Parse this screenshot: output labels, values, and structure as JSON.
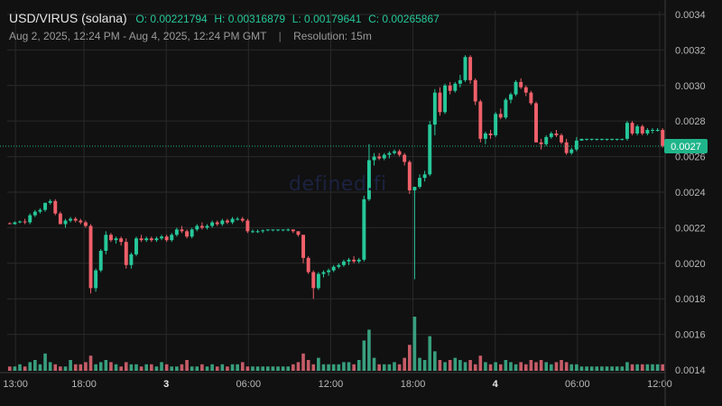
{
  "header": {
    "pair": "USD/VIRUS (solana)",
    "open": "O: 0.00221794",
    "high": "H: 0.00316879",
    "low": "L: 0.00179641",
    "close": "C: 0.00265867",
    "range": "Aug 2, 2025, 12:24 PM - Aug 4, 2025, 12:24 PM GMT",
    "separator": "|",
    "resolution": "Resolution: 15m"
  },
  "watermark": "defined.fi",
  "colors": {
    "background": "#111111",
    "grid": "#2a2a2a",
    "up": "#26c89a",
    "down": "#f0606a",
    "up_volume": "#3fb892",
    "down_volume": "#e66a78",
    "axis_text": "#b8b8b8",
    "price_badge": "#1fb58a"
  },
  "chart_data": {
    "type": "candlestick",
    "title": "USD/VIRUS (solana)",
    "xlabel": "",
    "ylabel": "",
    "ylim": [
      0.0014,
      0.00342
    ],
    "y_ticks": [
      "0.0034",
      "0.0032",
      "0.0030",
      "0.0028",
      "0.0026",
      "0.0024",
      "0.0022",
      "0.0020",
      "0.0018",
      "0.0016",
      "0.0014"
    ],
    "x_ticks": [
      {
        "label": "13:00",
        "t": 0.6
      },
      {
        "label": "18:00",
        "t": 5.6
      },
      {
        "label": "3",
        "t": 11.6,
        "bold": true
      },
      {
        "label": "06:00",
        "t": 17.6
      },
      {
        "label": "12:00",
        "t": 23.6
      },
      {
        "label": "18:00",
        "t": 29.6
      },
      {
        "label": "4",
        "t": 35.6,
        "bold": true
      },
      {
        "label": "06:00",
        "t": 41.6
      },
      {
        "label": "12:00",
        "t": 47.6
      }
    ],
    "x_range_hours": [
      0,
      48
    ],
    "grid": true,
    "current_price": "0.0027",
    "current_price_value": 0.002659,
    "ohlc": [
      [
        0.002225,
        0.00223,
        0.00222,
        0.00222
      ],
      [
        0.00222,
        0.002235,
        0.002218,
        0.00223
      ],
      [
        0.00223,
        0.00224,
        0.002225,
        0.002235
      ],
      [
        0.002235,
        0.00225,
        0.00222,
        0.00223
      ],
      [
        0.00223,
        0.00228,
        0.00222,
        0.00227
      ],
      [
        0.00227,
        0.0023,
        0.00226,
        0.00229
      ],
      [
        0.00229,
        0.00231,
        0.00228,
        0.0023
      ],
      [
        0.0023,
        0.00234,
        0.00229,
        0.00234
      ],
      [
        0.00234,
        0.00236,
        0.00233,
        0.00235
      ],
      [
        0.00235,
        0.00236,
        0.00227,
        0.00228
      ],
      [
        0.00228,
        0.00229,
        0.00222,
        0.00222
      ],
      [
        0.00222,
        0.00225,
        0.0022,
        0.00224
      ],
      [
        0.00224,
        0.00226,
        0.00223,
        0.00225
      ],
      [
        0.00225,
        0.00226,
        0.00223,
        0.00224
      ],
      [
        0.00224,
        0.00225,
        0.00222,
        0.00223
      ],
      [
        0.00223,
        0.00224,
        0.0022,
        0.00221
      ],
      [
        0.00221,
        0.00222,
        0.00183,
        0.00186
      ],
      [
        0.00186,
        0.00197,
        0.00184,
        0.00196
      ],
      [
        0.00196,
        0.00208,
        0.00195,
        0.00207
      ],
      [
        0.00207,
        0.00218,
        0.00205,
        0.00216
      ],
      [
        0.00216,
        0.00217,
        0.00212,
        0.00213
      ],
      [
        0.00213,
        0.00215,
        0.00211,
        0.00214
      ],
      [
        0.00214,
        0.00215,
        0.0021,
        0.00212
      ],
      [
        0.00212,
        0.00214,
        0.00197,
        0.00199
      ],
      [
        0.00199,
        0.00206,
        0.00197,
        0.00205
      ],
      [
        0.00205,
        0.00215,
        0.00204,
        0.00214
      ],
      [
        0.00214,
        0.00216,
        0.00212,
        0.00213
      ],
      [
        0.00213,
        0.00215,
        0.00212,
        0.00214
      ],
      [
        0.00214,
        0.00215,
        0.00212,
        0.00213
      ],
      [
        0.00213,
        0.00215,
        0.00212,
        0.00214
      ],
      [
        0.00214,
        0.00216,
        0.00213,
        0.00215
      ],
      [
        0.00215,
        0.00216,
        0.00212,
        0.00213
      ],
      [
        0.00213,
        0.00217,
        0.00212,
        0.00216
      ],
      [
        0.00216,
        0.0022,
        0.00215,
        0.00219
      ],
      [
        0.00219,
        0.00221,
        0.00217,
        0.00218
      ],
      [
        0.00218,
        0.00219,
        0.00214,
        0.00215
      ],
      [
        0.00215,
        0.0022,
        0.00214,
        0.00219
      ],
      [
        0.00219,
        0.00222,
        0.00218,
        0.00221
      ],
      [
        0.00221,
        0.00223,
        0.00219,
        0.0022
      ],
      [
        0.0022,
        0.00222,
        0.00219,
        0.00221
      ],
      [
        0.00221,
        0.00224,
        0.0022,
        0.00223
      ],
      [
        0.00223,
        0.00224,
        0.00221,
        0.00222
      ],
      [
        0.00222,
        0.00225,
        0.00221,
        0.00224
      ],
      [
        0.00224,
        0.00225,
        0.00222,
        0.00223
      ],
      [
        0.00223,
        0.00226,
        0.00222,
        0.00225
      ],
      [
        0.00225,
        0.00226,
        0.00224,
        0.00225
      ],
      [
        0.00225,
        0.00226,
        0.00223,
        0.00224
      ],
      [
        0.00224,
        0.00225,
        0.00217,
        0.00218
      ],
      [
        0.00218,
        0.00219,
        0.00217,
        0.00218
      ],
      [
        0.00218,
        0.00219,
        0.00217,
        0.00218
      ],
      [
        0.00218,
        0.00219,
        0.00217,
        0.002185
      ],
      [
        0.002185,
        0.00219,
        0.00218,
        0.00219
      ],
      [
        0.00219,
        0.00219,
        0.00218,
        0.00219
      ],
      [
        0.00219,
        0.00219,
        0.00218,
        0.00219
      ],
      [
        0.00219,
        0.00219,
        0.00218,
        0.00219
      ],
      [
        0.00219,
        0.002195,
        0.00218,
        0.00219
      ],
      [
        0.00219,
        0.00219,
        0.00217,
        0.00218
      ],
      [
        0.00218,
        0.00218,
        0.00215,
        0.00216
      ],
      [
        0.00216,
        0.00216,
        0.002,
        0.00203
      ],
      [
        0.00203,
        0.00204,
        0.00194,
        0.00195
      ],
      [
        0.00195,
        0.00196,
        0.0018,
        0.00186
      ],
      [
        0.00186,
        0.00195,
        0.00185,
        0.00194
      ],
      [
        0.00194,
        0.00196,
        0.00192,
        0.00195
      ],
      [
        0.00195,
        0.00197,
        0.00193,
        0.00196
      ],
      [
        0.00196,
        0.00199,
        0.00195,
        0.00198
      ],
      [
        0.00198,
        0.002,
        0.00197,
        0.00199
      ],
      [
        0.00199,
        0.00202,
        0.00198,
        0.00201
      ],
      [
        0.00201,
        0.00203,
        0.00199,
        0.00202
      ],
      [
        0.00202,
        0.00204,
        0.002,
        0.00201
      ],
      [
        0.00201,
        0.00203,
        0.002,
        0.00202
      ],
      [
        0.00202,
        0.00238,
        0.00201,
        0.00236
      ],
      [
        0.00236,
        0.00267,
        0.00235,
        0.00258
      ],
      [
        0.00258,
        0.00262,
        0.00255,
        0.0026
      ],
      [
        0.0026,
        0.00262,
        0.00258,
        0.00259
      ],
      [
        0.00259,
        0.00262,
        0.00258,
        0.00261
      ],
      [
        0.00261,
        0.00263,
        0.00259,
        0.00262
      ],
      [
        0.00262,
        0.00264,
        0.00261,
        0.00263
      ],
      [
        0.00263,
        0.00264,
        0.0026,
        0.00261
      ],
      [
        0.00261,
        0.00262,
        0.00255,
        0.00257
      ],
      [
        0.00257,
        0.00258,
        0.00239,
        0.00241
      ],
      [
        0.00241,
        0.00242,
        0.00191,
        0.00243
      ],
      [
        0.00243,
        0.0025,
        0.00242,
        0.00248
      ],
      [
        0.00248,
        0.00252,
        0.00246,
        0.0025
      ],
      [
        0.0025,
        0.0028,
        0.00249,
        0.00278
      ],
      [
        0.00278,
        0.00298,
        0.00272,
        0.00296
      ],
      [
        0.00296,
        0.00299,
        0.00283,
        0.00285
      ],
      [
        0.00285,
        0.00301,
        0.00284,
        0.003
      ],
      [
        0.003,
        0.00302,
        0.00295,
        0.00297
      ],
      [
        0.00297,
        0.00302,
        0.00296,
        0.00301
      ],
      [
        0.00301,
        0.00306,
        0.00299,
        0.00303
      ],
      [
        0.00303,
        0.00317,
        0.00302,
        0.00316
      ],
      [
        0.00316,
        0.00317,
        0.00301,
        0.00303
      ],
      [
        0.00303,
        0.00304,
        0.00289,
        0.00291
      ],
      [
        0.00291,
        0.00292,
        0.00268,
        0.0027
      ],
      [
        0.0027,
        0.00274,
        0.00267,
        0.00273
      ],
      [
        0.00273,
        0.00275,
        0.0027,
        0.00272
      ],
      [
        0.00272,
        0.00285,
        0.00271,
        0.00284
      ],
      [
        0.00284,
        0.00287,
        0.00281,
        0.00282
      ],
      [
        0.00282,
        0.00293,
        0.00281,
        0.00292
      ],
      [
        0.00292,
        0.00296,
        0.0029,
        0.00295
      ],
      [
        0.00295,
        0.00303,
        0.00294,
        0.00302
      ],
      [
        0.00302,
        0.00304,
        0.00298,
        0.00299
      ],
      [
        0.00299,
        0.003,
        0.00294,
        0.00296
      ],
      [
        0.00296,
        0.00297,
        0.00289,
        0.0029
      ],
      [
        0.0029,
        0.00291,
        0.00268,
        0.00268
      ],
      [
        0.00268,
        0.0027,
        0.00264,
        0.00267
      ],
      [
        0.00267,
        0.00272,
        0.00266,
        0.00271
      ],
      [
        0.00271,
        0.00274,
        0.0027,
        0.00273
      ],
      [
        0.00273,
        0.00275,
        0.00271,
        0.00272
      ],
      [
        0.00272,
        0.00273,
        0.00267,
        0.00268
      ],
      [
        0.00268,
        0.0027,
        0.00261,
        0.00262
      ],
      [
        0.00262,
        0.00265,
        0.00261,
        0.00264
      ],
      [
        0.00264,
        0.00271,
        0.00263,
        0.00269
      ],
      [
        0.00269,
        0.0027,
        0.00269,
        0.0027
      ],
      [
        0.0027,
        0.0027,
        0.00269,
        0.0027
      ],
      [
        0.0027,
        0.0027,
        0.00269,
        0.0027
      ],
      [
        0.0027,
        0.0027,
        0.00269,
        0.0027
      ],
      [
        0.0027,
        0.0027,
        0.00269,
        0.0027
      ],
      [
        0.0027,
        0.0027,
        0.00269,
        0.0027
      ],
      [
        0.0027,
        0.0027,
        0.00269,
        0.0027
      ],
      [
        0.0027,
        0.0027,
        0.00269,
        0.0027
      ],
      [
        0.0027,
        0.0027,
        0.00269,
        0.0027
      ],
      [
        0.0027,
        0.0028,
        0.00269,
        0.00279
      ],
      [
        0.00279,
        0.0028,
        0.00272,
        0.00273
      ],
      [
        0.00273,
        0.00278,
        0.00272,
        0.00277
      ],
      [
        0.00277,
        0.00278,
        0.00272,
        0.00273
      ],
      [
        0.00273,
        0.00276,
        0.00272,
        0.00275
      ],
      [
        0.00275,
        0.00276,
        0.00273,
        0.00275
      ],
      [
        0.00275,
        0.00276,
        0.00274,
        0.00275
      ],
      [
        0.00275,
        0.00276,
        0.00265,
        0.00266
      ]
    ],
    "volume": [
      2,
      2,
      3,
      2,
      4,
      5,
      3,
      8,
      4,
      3,
      2,
      2,
      5,
      3,
      3,
      4,
      7,
      3,
      4,
      5,
      4,
      3,
      2,
      4,
      3,
      3,
      2,
      3,
      3,
      2,
      4,
      3,
      2,
      2,
      3,
      5,
      2,
      2,
      3,
      2,
      3,
      2,
      3,
      2,
      3,
      3,
      4,
      2,
      2,
      2,
      2,
      2,
      2,
      2,
      2,
      2,
      3,
      4,
      8,
      5,
      3,
      6,
      3,
      3,
      3,
      3,
      4,
      4,
      3,
      5,
      14,
      19,
      6,
      3,
      3,
      3,
      4,
      3,
      6,
      12,
      25,
      6,
      5,
      16,
      9,
      5,
      4,
      5,
      6,
      5,
      4,
      5,
      3,
      7,
      4,
      3,
      4,
      3,
      5,
      4,
      3,
      4,
      3,
      5,
      4,
      5,
      4,
      3,
      4,
      5,
      4,
      3,
      3,
      2,
      2,
      2,
      2,
      2,
      2,
      2,
      2,
      2,
      4,
      3,
      3,
      3,
      3,
      3,
      3,
      3
    ]
  }
}
